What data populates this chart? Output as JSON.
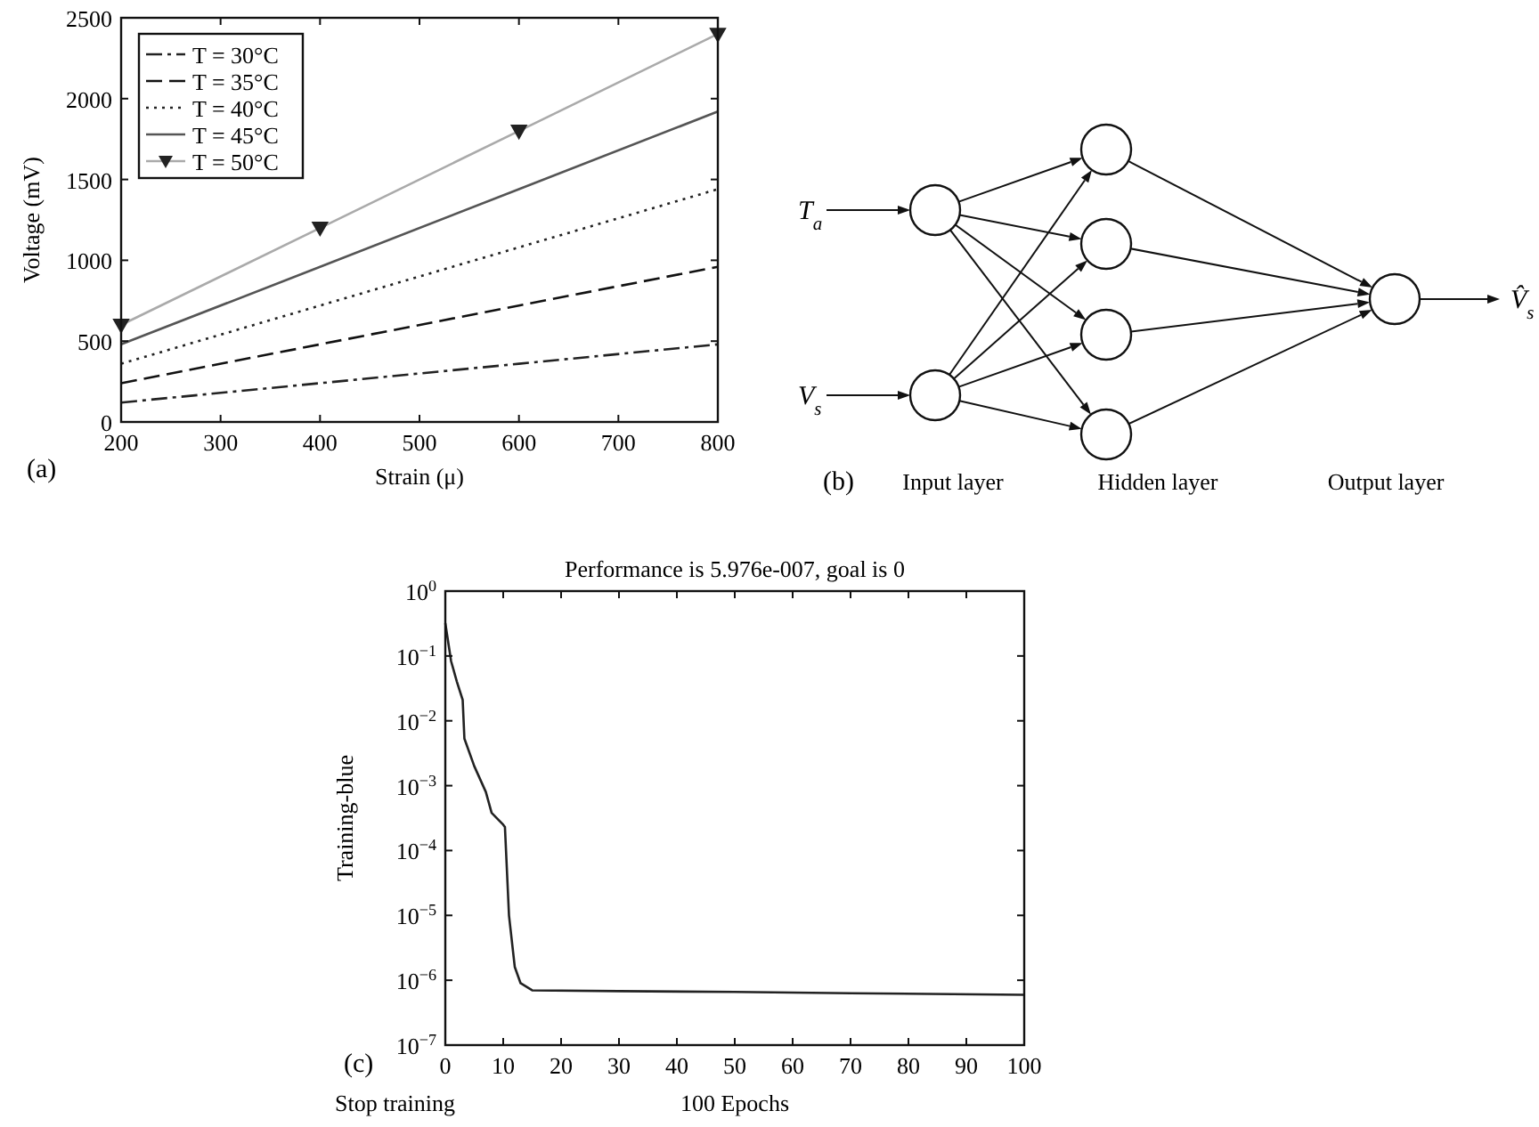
{
  "chart_data": [
    {
      "type": "line",
      "xlabel": "Strain (μ)",
      "ylabel": "Voltage (mV)",
      "x": [
        200,
        400,
        600,
        800
      ],
      "xlim": [
        200,
        800
      ],
      "ylim": [
        0,
        2500
      ],
      "xticks": [
        200,
        300,
        400,
        500,
        600,
        700,
        800
      ],
      "yticks": [
        0,
        500,
        1000,
        1500,
        2000,
        2500
      ],
      "legend": "top left",
      "annotations": [
        "(a)"
      ],
      "series": [
        {
          "name": "T = 30°C",
          "color": "#222222",
          "line_style": "dashdot",
          "marker": "none",
          "values": [
            120,
            240,
            360,
            480
          ]
        },
        {
          "name": "T = 35°C",
          "color": "#111111",
          "line_style": "dashed",
          "marker": "none",
          "values": [
            240,
            480,
            720,
            960
          ]
        },
        {
          "name": "T = 40°C",
          "color": "#222222",
          "line_style": "dotted",
          "marker": "none",
          "values": [
            360,
            720,
            1080,
            1440
          ]
        },
        {
          "name": "T = 45°C",
          "color": "#555555",
          "line_style": "solid",
          "marker": "none",
          "values": [
            480,
            960,
            1440,
            1920
          ]
        },
        {
          "name": "T = 50°C",
          "color": "#aaaaaa",
          "line_style": "solid",
          "marker": "triangle",
          "values": [
            600,
            1200,
            1800,
            2400
          ]
        }
      ]
    },
    {
      "type": "other",
      "annotations": [
        "T$_{a}$",
        "V$_{s}$",
        "V̂$_{s}$",
        "(b)",
        "Input layer",
        "Hidden layer",
        "Output layer"
      ]
    },
    {
      "type": "line",
      "title": "Performance is 5.976e-007, goal is 0",
      "xlabel": "100 Epochs",
      "ylabel": "Training-blue",
      "log": "y",
      "xlim": [
        0,
        100
      ],
      "ylim": [
        1e-07,
        1
      ],
      "xticks": [
        0,
        10,
        20,
        30,
        40,
        50,
        60,
        70,
        80,
        90,
        100
      ],
      "yticks": [
        {
          "value": 1e-07,
          "label": "10$^{−7}$"
        },
        {
          "value": 1e-06,
          "label": "10$^{−6}$"
        },
        {
          "value": 1e-05,
          "label": "10$^{−5}$"
        },
        {
          "value": 0.0001,
          "label": "10$^{−4}$"
        },
        {
          "value": 0.001,
          "label": "10$^{−3}$"
        },
        {
          "value": 0.01,
          "label": "10$^{−2}$"
        },
        {
          "value": 0.1,
          "label": "10$^{−1}$"
        },
        {
          "value": 1,
          "label": "10$^{0}$"
        }
      ],
      "annotations": [
        "(c)",
        "Stop training"
      ],
      "series": [
        {
          "color": "#222222",
          "line_style": "solid",
          "marker": "none",
          "x": [
            0,
            1,
            2,
            3,
            3.3,
            5,
            7,
            8,
            10,
            10.3,
            11,
            12,
            13,
            15,
            30,
            50,
            70,
            100
          ],
          "values": [
            0.32,
            0.083,
            0.04,
            0.021,
            0.0053,
            0.002,
            0.0008,
            0.00038,
            0.00025,
            0.00023,
            1e-05,
            1.6e-06,
            9e-07,
            7e-07,
            6.8e-07,
            6.6e-07,
            6.3e-07,
            5.976e-07
          ]
        }
      ]
    }
  ]
}
